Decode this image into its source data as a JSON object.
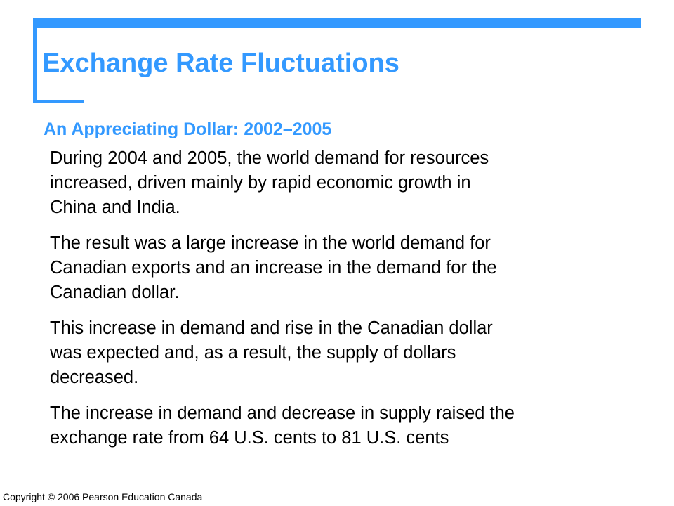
{
  "slide": {
    "title": "Exchange Rate Fluctuations",
    "subtitle": "An Appreciating Dollar: 2002–2005",
    "accent_color": "#3399ff",
    "paragraphs": [
      {
        "lines": [
          "During 2004 and 2005, the world demand for resources",
          "increased, driven mainly by rapid economic growth in",
          "China and India."
        ]
      },
      {
        "lines": [
          "The result was a large increase in the world demand for",
          "Canadian exports and an increase in the demand for the",
          "Canadian dollar."
        ]
      },
      {
        "lines": [
          "This increase in demand and rise in the Canadian dollar",
          "was expected and, as a result, the supply of dollars",
          "decreased."
        ]
      },
      {
        "lines": [
          "The increase in demand and decrease in supply raised the",
          "exchange rate from 64 U.S. cents to 81 U.S. cents"
        ]
      }
    ],
    "copyright": "Copyright © 2006 Pearson Education Canada"
  }
}
